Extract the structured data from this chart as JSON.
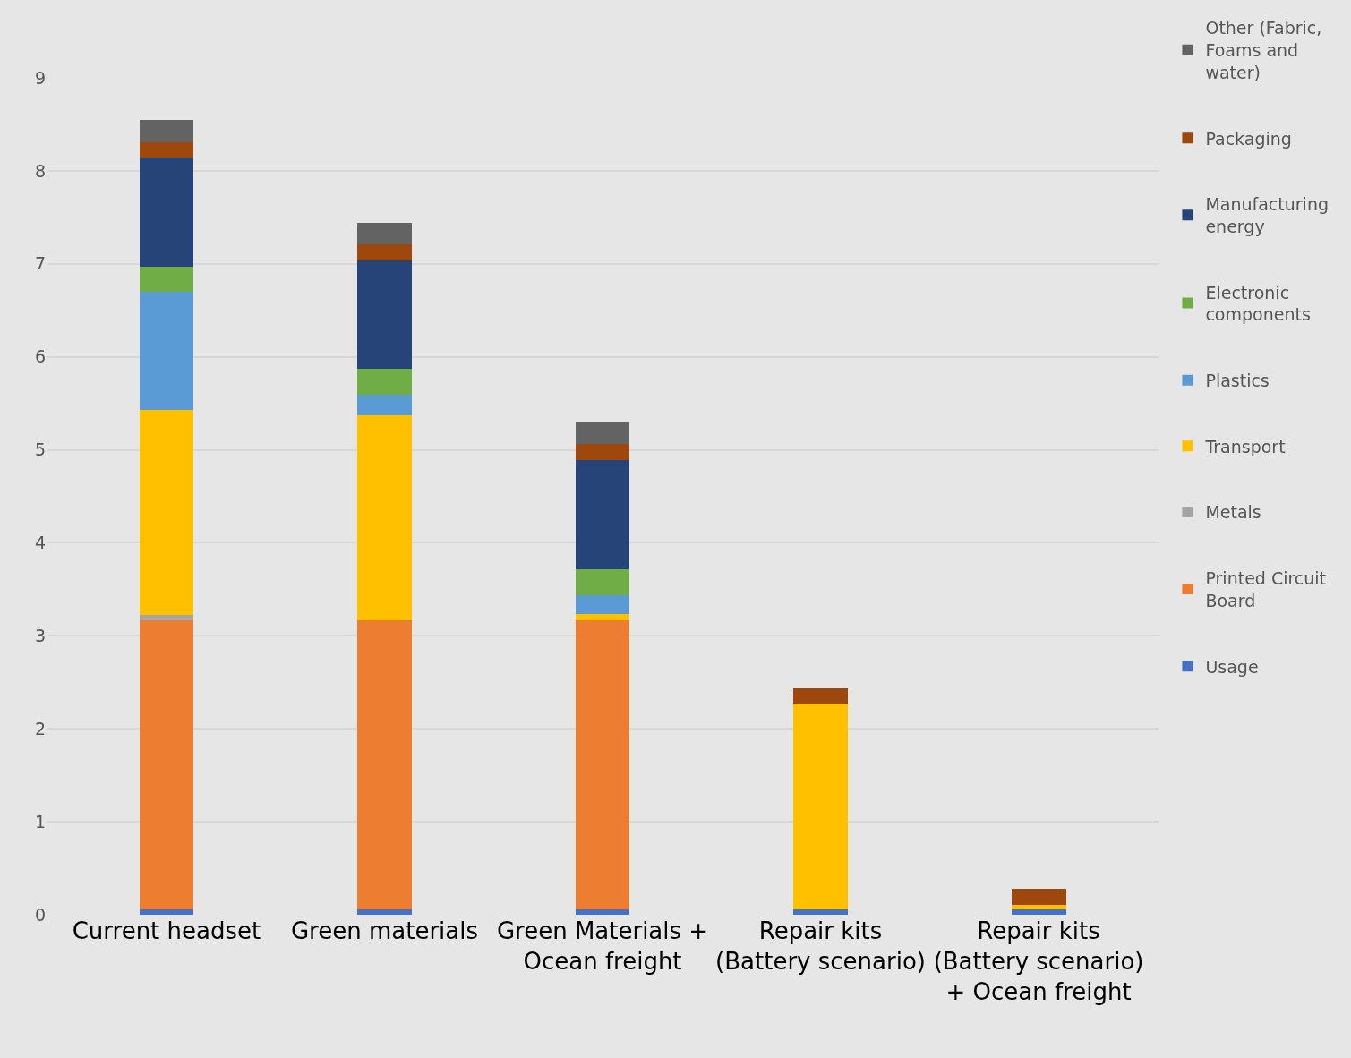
{
  "chart_data": {
    "type": "bar",
    "stacked": true,
    "categories": [
      "Current headset",
      "Green materials",
      "Green Materials + Ocean freight",
      "Repair kits (Battery scenario)",
      "Repair kits (Battery scenario) + Ocean freight"
    ],
    "series": [
      {
        "name": "Usage",
        "color": "#4472c4",
        "values": [
          0.06,
          0.06,
          0.06,
          0.06,
          0.06
        ]
      },
      {
        "name": "Printed Circuit Board",
        "color": "#ed7d31",
        "values": [
          3.11,
          3.11,
          3.11,
          0,
          0
        ]
      },
      {
        "name": "Metals",
        "color": "#a5a5a5",
        "values": [
          0.05,
          null,
          0,
          0,
          0
        ]
      },
      {
        "name": "Transport",
        "color": "#ffc000",
        "values": [
          2.21,
          2.2,
          0.06,
          2.21,
          0.05
        ]
      },
      {
        "name": "Plastics",
        "color": "#5b9bd5",
        "values": [
          1.27,
          0.22,
          0.21,
          0,
          0
        ]
      },
      {
        "name": "Electronic components",
        "color": "#70ad47",
        "values": [
          0.27,
          0.28,
          0.28,
          0,
          0
        ]
      },
      {
        "name": "Manufacturing energy",
        "color": "#264478",
        "values": [
          1.17,
          1.17,
          1.17,
          0,
          0
        ]
      },
      {
        "name": "Packaging",
        "color": "#9e480e",
        "values": [
          0.17,
          0.17,
          0.17,
          0.17,
          0.17
        ]
      },
      {
        "name": "Other (Fabric, Foams and water)",
        "color": "#636363",
        "values": [
          0.24,
          0.23,
          0.23,
          0,
          0
        ]
      }
    ],
    "ylim": [
      0,
      9
    ],
    "yticks": [
      0,
      1,
      2,
      3,
      4,
      5,
      6,
      7,
      8,
      9
    ],
    "grid": "y",
    "legend": "right"
  }
}
